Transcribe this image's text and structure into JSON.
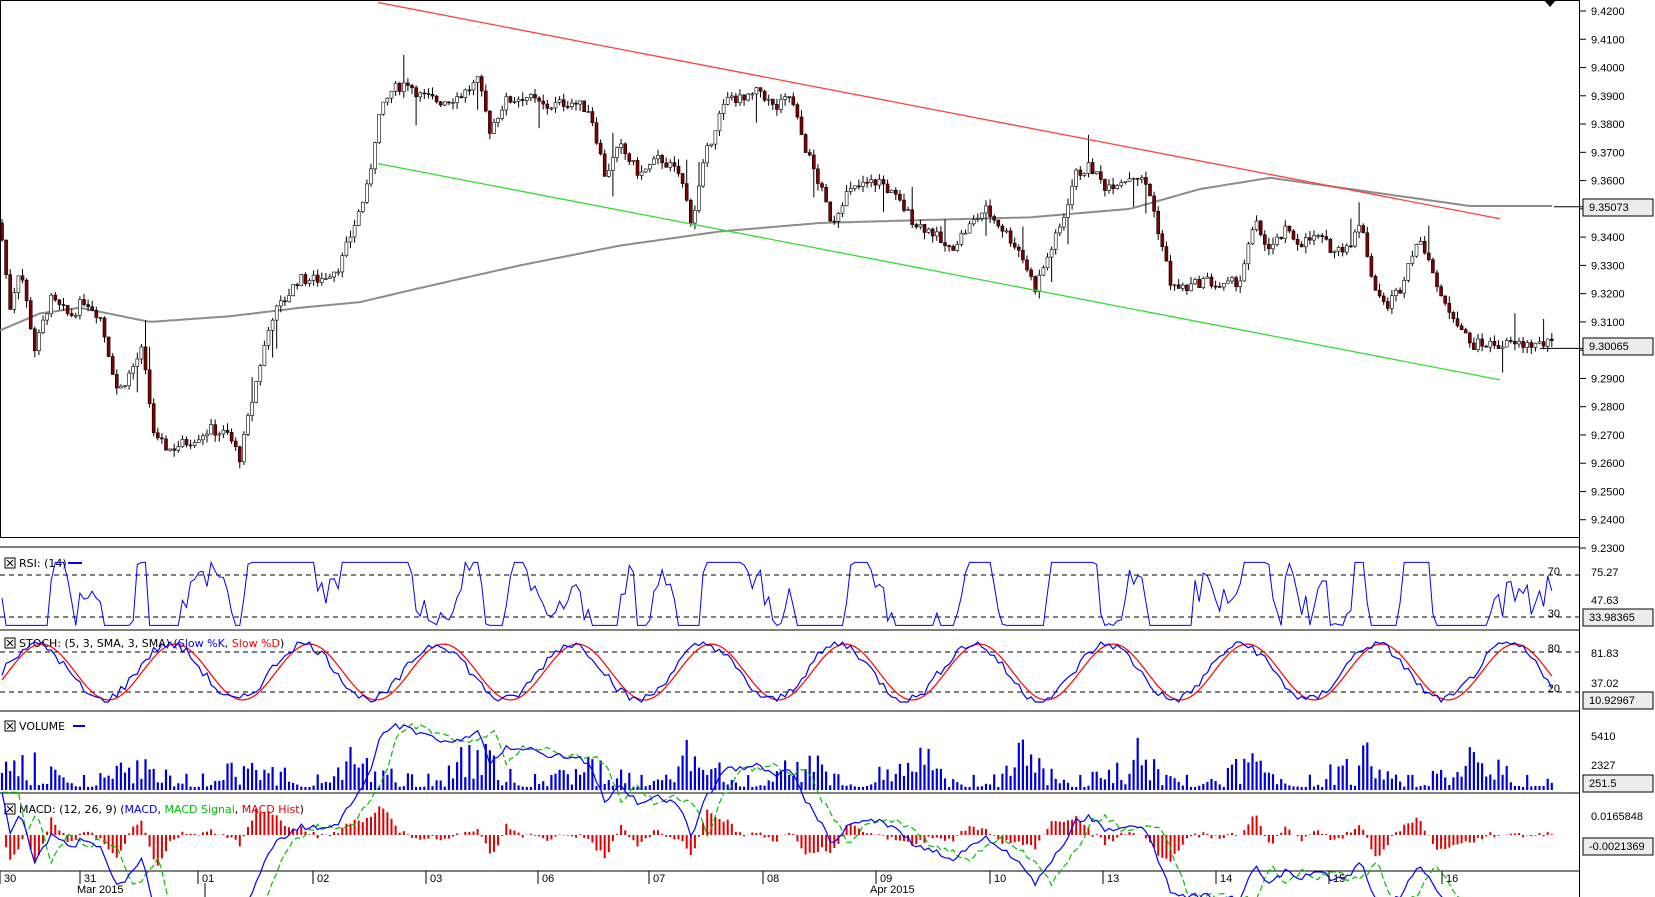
{
  "price_axis": {
    "ticks": [
      "9.4200",
      "9.4100",
      "9.4000",
      "9.3900",
      "9.3800",
      "9.3700",
      "9.3600",
      "9.3500",
      "9.3400",
      "9.3300",
      "9.3200",
      "9.3100",
      "9.3000",
      "9.2900",
      "9.2800",
      "9.2700",
      "9.2600",
      "9.2500",
      "9.2400",
      "9.2300"
    ],
    "tick_values": [
      9.42,
      9.41,
      9.4,
      9.39,
      9.38,
      9.37,
      9.36,
      9.35,
      9.34,
      9.33,
      9.32,
      9.31,
      9.3,
      9.29,
      9.28,
      9.27,
      9.26,
      9.25,
      9.24,
      9.23
    ],
    "range": [
      9.23,
      9.426
    ],
    "sma_label": "9.35073",
    "sma_value": 9.35073,
    "last_label": "9.30065",
    "last_value": 9.30065
  },
  "rsi": {
    "title": "RSI: (14)",
    "levels": [
      "70",
      "30"
    ],
    "ticks": [
      "75.27",
      "47.63"
    ],
    "current": "33.98365"
  },
  "stoch": {
    "title_prefix": "STOCH: (5, 3, SMA, 3, SMA) (",
    "k_label": "Slow %K",
    "sep": ", ",
    "d_label": "Slow %D",
    "title_suffix": ")",
    "levels": [
      "80",
      "20"
    ],
    "ticks": [
      "81.83",
      "37.02"
    ],
    "current": "10.92967"
  },
  "volume": {
    "title": "VOLUME",
    "ticks": [
      "5410",
      "2327"
    ],
    "current": "251.5"
  },
  "macd": {
    "title_prefix": "MACD: (12, 26, 9) (",
    "macd_label": "MACD",
    "sep": ", ",
    "signal_label": "MACD Signal",
    "hist_label": "MACD Hist",
    "title_suffix": ")",
    "ticks": [
      "0.0165848"
    ],
    "current": "-0.0021369"
  },
  "time_axis": {
    "days": [
      "30",
      "31",
      "01",
      "02",
      "03",
      "06",
      "07",
      "08",
      "09",
      "10",
      "13",
      "14",
      "15",
      "16"
    ],
    "months": [
      "Mar 2015",
      "Apr 2015"
    ]
  },
  "colors": {
    "up_candle": "#ffffff",
    "down_candle": "#800000",
    "wick": "#000000",
    "sma": "#8c8c8c",
    "resistance": "#ff4040",
    "support": "#33dd33",
    "rsi": "#0000ff",
    "stoch_k": "#0000ff",
    "stoch_d": "#ff0000",
    "volume": "#0000dd",
    "macd": "#0000ff",
    "macd_signal": "#00c000",
    "macd_hist": "#e00000"
  },
  "chart_data": {
    "type": "candlestick",
    "instrument_units": "price",
    "x_axis": "time (Mar 30 - Apr 16, 2015)",
    "ohlc_anchors": [
      [
        0,
        9.345
      ],
      [
        10,
        9.315
      ],
      [
        20,
        9.33
      ],
      [
        35,
        9.3
      ],
      [
        50,
        9.318
      ],
      [
        70,
        9.312
      ],
      [
        85,
        9.318
      ],
      [
        100,
        9.312
      ],
      [
        118,
        9.285
      ],
      [
        130,
        9.292
      ],
      [
        142,
        9.3
      ],
      [
        155,
        9.268
      ],
      [
        170,
        9.265
      ],
      [
        190,
        9.268
      ],
      [
        210,
        9.272
      ],
      [
        228,
        9.27
      ],
      [
        240,
        9.262
      ],
      [
        252,
        9.282
      ],
      [
        262,
        9.298
      ],
      [
        272,
        9.312
      ],
      [
        285,
        9.318
      ],
      [
        298,
        9.325
      ],
      [
        320,
        9.325
      ],
      [
        340,
        9.33
      ],
      [
        352,
        9.342
      ],
      [
        368,
        9.358
      ],
      [
        378,
        9.382
      ],
      [
        392,
        9.392
      ],
      [
        408,
        9.395
      ],
      [
        420,
        9.39
      ],
      [
        440,
        9.388
      ],
      [
        460,
        9.39
      ],
      [
        478,
        9.395
      ],
      [
        490,
        9.378
      ],
      [
        505,
        9.388
      ],
      [
        525,
        9.39
      ],
      [
        545,
        9.386
      ],
      [
        570,
        9.388
      ],
      [
        590,
        9.385
      ],
      [
        605,
        9.362
      ],
      [
        620,
        9.372
      ],
      [
        640,
        9.362
      ],
      [
        660,
        9.368
      ],
      [
        680,
        9.362
      ],
      [
        692,
        9.345
      ],
      [
        705,
        9.368
      ],
      [
        718,
        9.382
      ],
      [
        730,
        9.39
      ],
      [
        745,
        9.388
      ],
      [
        760,
        9.392
      ],
      [
        775,
        9.385
      ],
      [
        790,
        9.39
      ],
      [
        805,
        9.372
      ],
      [
        820,
        9.358
      ],
      [
        832,
        9.345
      ],
      [
        845,
        9.355
      ],
      [
        860,
        9.358
      ],
      [
        880,
        9.36
      ],
      [
        900,
        9.352
      ],
      [
        915,
        9.345
      ],
      [
        932,
        9.342
      ],
      [
        948,
        9.335
      ],
      [
        965,
        9.342
      ],
      [
        985,
        9.35
      ],
      [
        1005,
        9.342
      ],
      [
        1020,
        9.335
      ],
      [
        1035,
        9.322
      ],
      [
        1050,
        9.335
      ],
      [
        1062,
        9.345
      ],
      [
        1075,
        9.362
      ],
      [
        1090,
        9.365
      ],
      [
        1105,
        9.358
      ],
      [
        1120,
        9.36
      ],
      [
        1135,
        9.362
      ],
      [
        1148,
        9.358
      ],
      [
        1160,
        9.34
      ],
      [
        1172,
        9.322
      ],
      [
        1188,
        9.322
      ],
      [
        1205,
        9.325
      ],
      [
        1222,
        9.322
      ],
      [
        1240,
        9.325
      ],
      [
        1255,
        9.345
      ],
      [
        1270,
        9.335
      ],
      [
        1285,
        9.342
      ],
      [
        1300,
        9.338
      ],
      [
        1318,
        9.34
      ],
      [
        1335,
        9.335
      ],
      [
        1350,
        9.338
      ],
      [
        1362,
        9.345
      ],
      [
        1372,
        9.325
      ],
      [
        1385,
        9.315
      ],
      [
        1400,
        9.322
      ],
      [
        1415,
        9.338
      ],
      [
        1428,
        9.335
      ],
      [
        1440,
        9.318
      ],
      [
        1455,
        9.312
      ],
      [
        1470,
        9.302
      ]
    ],
    "sma_anchors": [
      [
        0,
        9.307
      ],
      [
        40,
        9.313
      ],
      [
        80,
        9.315
      ],
      [
        150,
        9.31
      ],
      [
        230,
        9.312
      ],
      [
        300,
        9.315
      ],
      [
        360,
        9.317
      ],
      [
        420,
        9.322
      ],
      [
        520,
        9.33
      ],
      [
        620,
        9.337
      ],
      [
        720,
        9.342
      ],
      [
        820,
        9.345
      ],
      [
        920,
        9.346
      ],
      [
        1030,
        9.347
      ],
      [
        1130,
        9.35
      ],
      [
        1200,
        9.357
      ],
      [
        1270,
        9.361
      ],
      [
        1330,
        9.358
      ],
      [
        1410,
        9.354
      ],
      [
        1470,
        9.351
      ]
    ],
    "resistance_line": {
      "x": [
        378,
        1500
      ],
      "y": [
        9.423,
        9.3465
      ]
    },
    "support_line": {
      "x": [
        378,
        1500
      ],
      "y": [
        9.366,
        9.2895
      ]
    },
    "last_price": 9.30065,
    "sma_last": 9.35073
  }
}
